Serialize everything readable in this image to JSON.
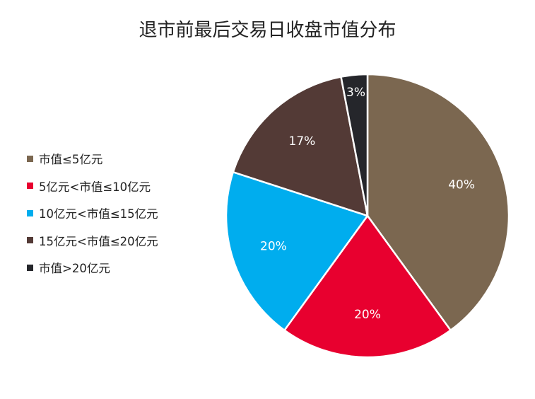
{
  "chart_data": {
    "type": "pie",
    "title": "退市前最后交易日收盘市值分布",
    "legend_position": "left",
    "slices": [
      {
        "label": "市值≤5亿元",
        "value": 40,
        "display": "40%",
        "color": "#7b6750"
      },
      {
        "label": "5亿元<市值≤10亿元",
        "value": 20,
        "display": "20%",
        "color": "#e8002f"
      },
      {
        "label": "10亿元<市值≤15亿元",
        "value": 20,
        "display": "20%",
        "color": "#00adee"
      },
      {
        "label": "15亿元<市值≤20亿元",
        "value": 17,
        "display": "17%",
        "color": "#533a36"
      },
      {
        "label": "市值>20亿元",
        "value": 3,
        "display": "3%",
        "color": "#25262b"
      }
    ],
    "data_label_colors": [
      "#ffffff",
      "#ffffff",
      "#ffffff",
      "#ffffff",
      "#ffffff"
    ],
    "start_angle_deg": 0,
    "direction": "clockwise"
  }
}
